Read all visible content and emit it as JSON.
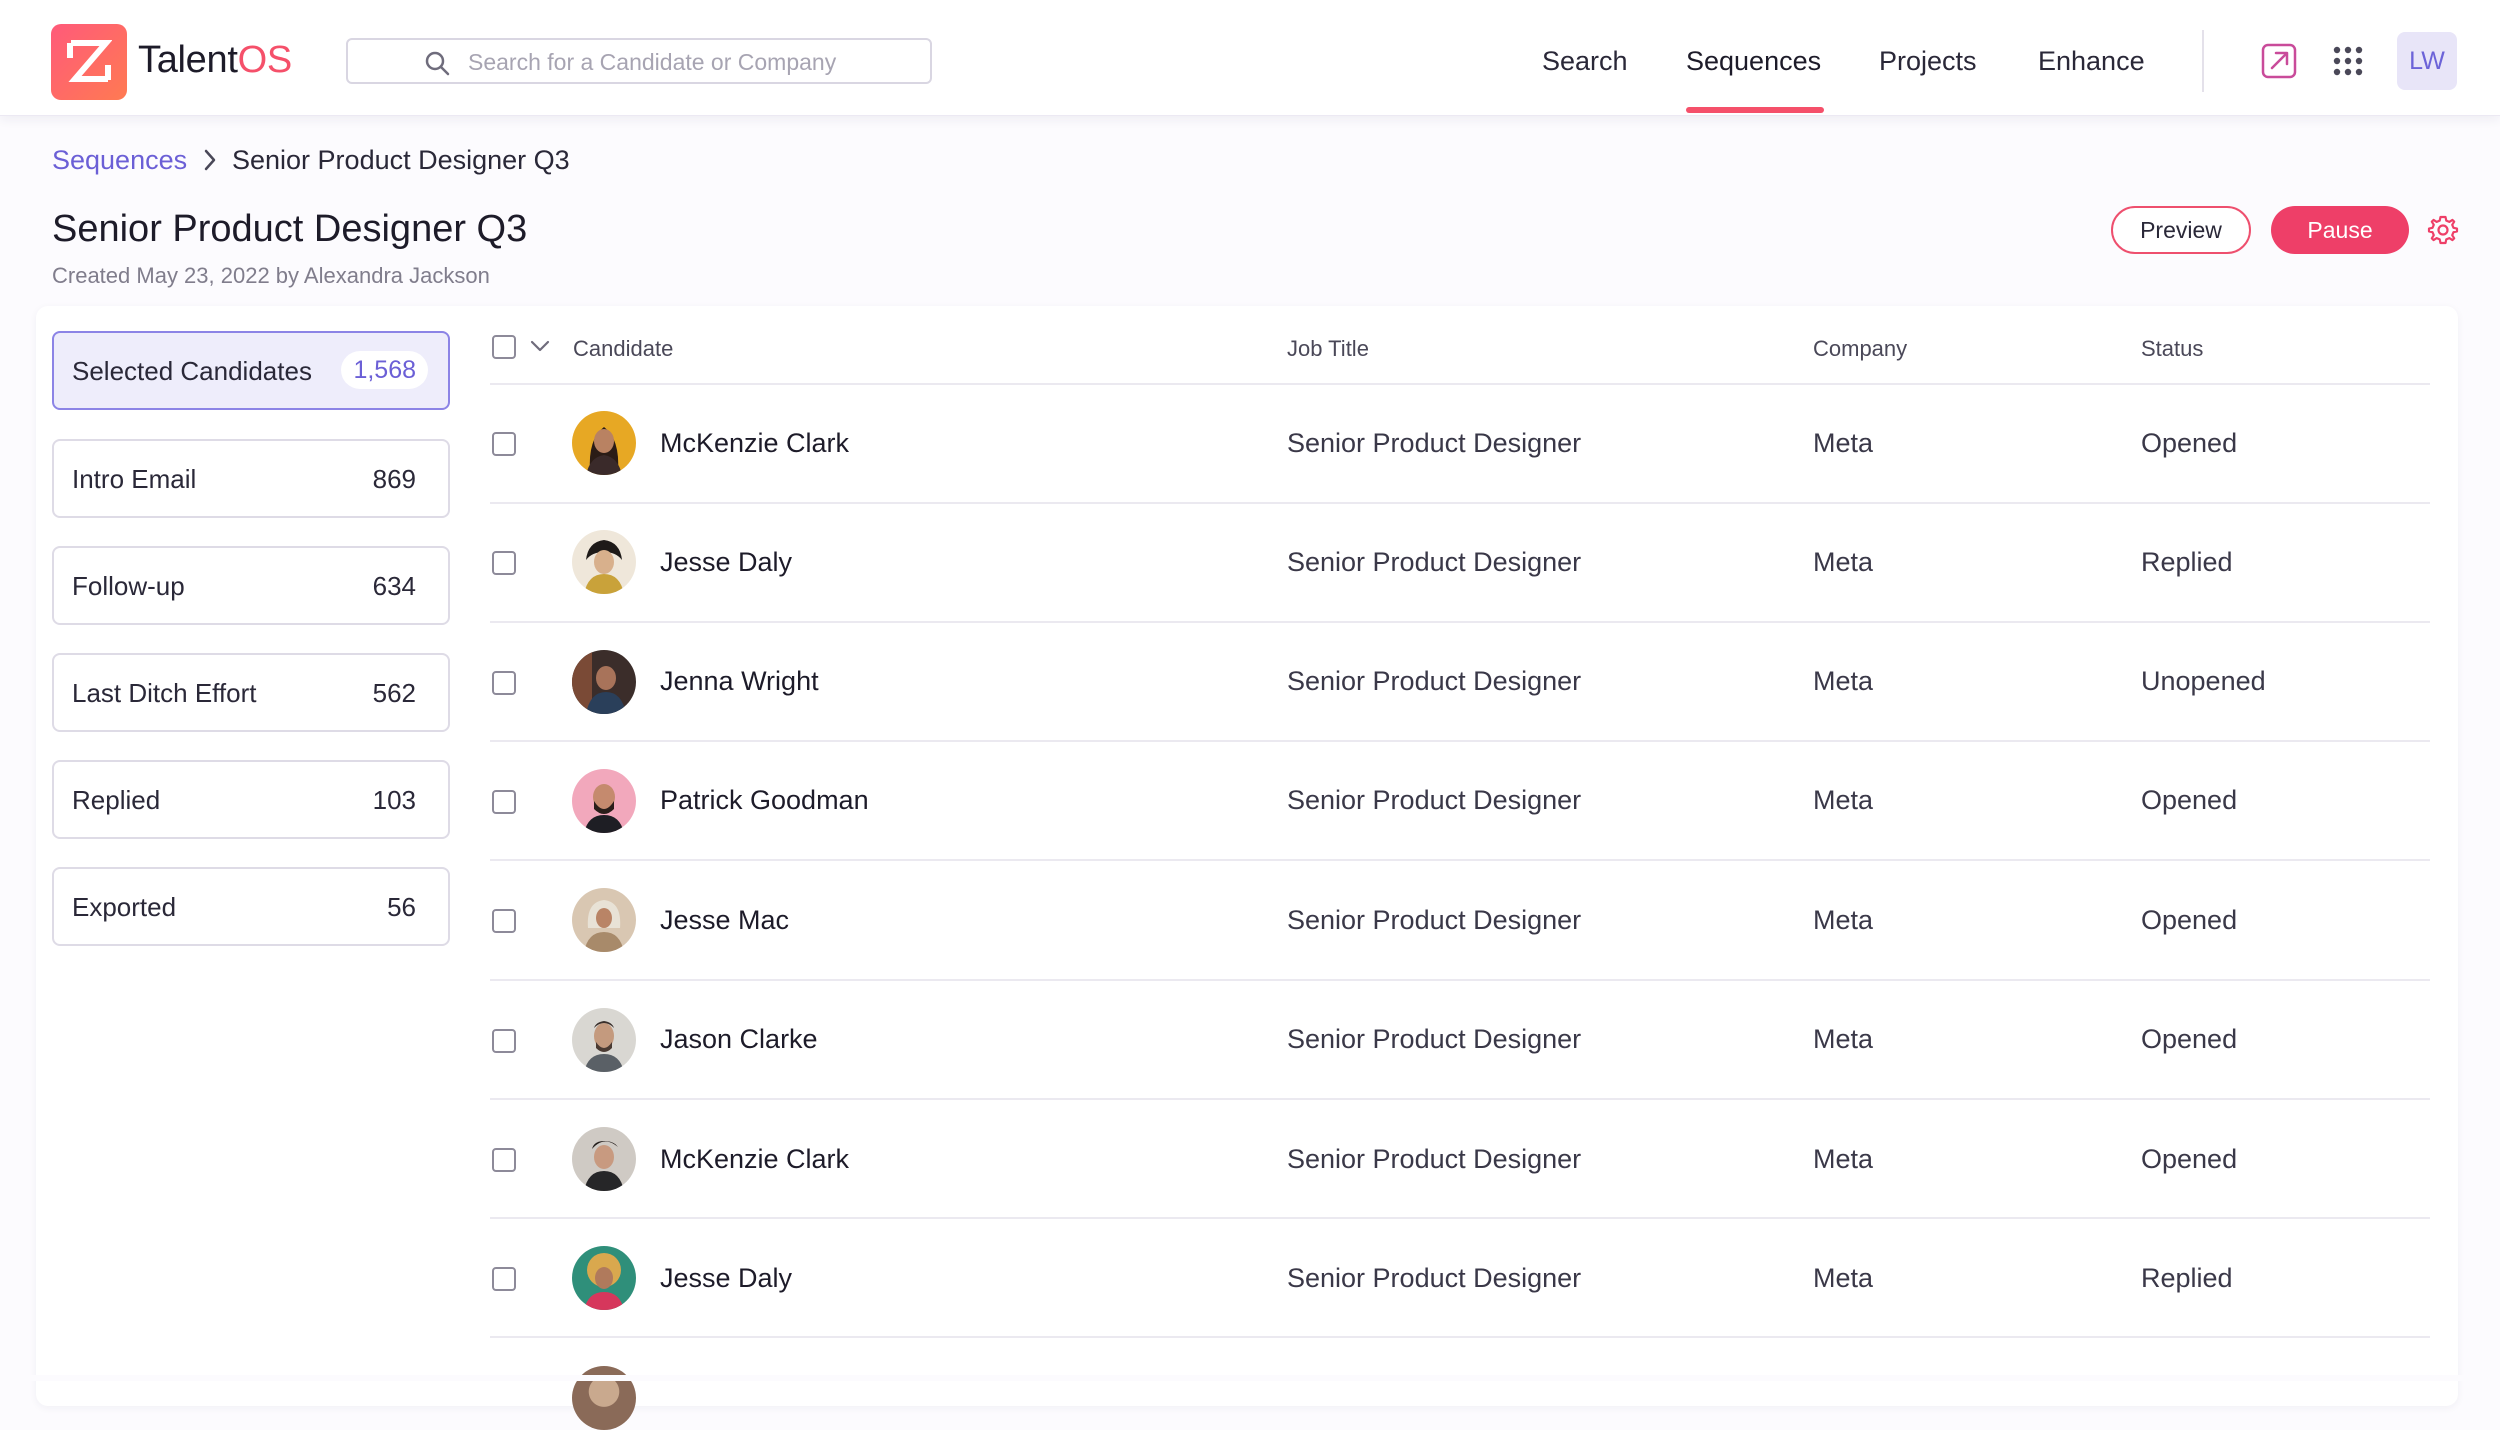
{
  "app": {
    "logo_part1": "Talent",
    "logo_part2": "OS",
    "brand_colors": {
      "accent": "#f5506a",
      "primary": "#6b5fd6",
      "pause": "#ee3f68"
    }
  },
  "search": {
    "placeholder": "Search for a Candidate or Company",
    "icon": "search-icon"
  },
  "nav": {
    "items": [
      "Search",
      "Sequences",
      "Projects",
      "Enhance"
    ],
    "active": "Sequences",
    "icons": [
      "external-link-icon",
      "apps-grid-icon"
    ],
    "user_initials": "LW"
  },
  "breadcrumb": {
    "parent": "Sequences",
    "current": "Senior Product Designer Q3"
  },
  "page": {
    "title": "Senior Product Designer Q3",
    "subtitle": "Created May 23, 2022 by Alexandra Jackson",
    "preview_label": "Preview",
    "pause_label": "Pause"
  },
  "filters": [
    {
      "label": "Selected Candidates",
      "count": "1,568",
      "active": true
    },
    {
      "label": "Intro Email",
      "count": "869"
    },
    {
      "label": "Follow-up",
      "count": "634"
    },
    {
      "label": "Last Ditch Effort",
      "count": "562"
    },
    {
      "label": "Replied",
      "count": "103"
    },
    {
      "label": "Exported",
      "count": "56"
    }
  ],
  "table": {
    "columns": [
      "Candidate",
      "Job Title",
      "Company",
      "Status"
    ],
    "rows": [
      {
        "name": "McKenzie Clark",
        "job": "Senior Product Designer",
        "company": "Meta",
        "status": "Opened"
      },
      {
        "name": "Jesse Daly",
        "job": "Senior Product Designer",
        "company": "Meta",
        "status": "Replied"
      },
      {
        "name": "Jenna Wright",
        "job": "Senior Product Designer",
        "company": "Meta",
        "status": "Unopened"
      },
      {
        "name": "Patrick Goodman",
        "job": "Senior Product Designer",
        "company": "Meta",
        "status": "Opened"
      },
      {
        "name": "Jesse Mac",
        "job": "Senior Product Designer",
        "company": "Meta",
        "status": "Opened"
      },
      {
        "name": "Jason Clarke",
        "job": "Senior Product Designer",
        "company": "Meta",
        "status": "Opened"
      },
      {
        "name": "McKenzie Clark",
        "job": "Senior Product Designer",
        "company": "Meta",
        "status": "Opened"
      },
      {
        "name": "Jesse Daly",
        "job": "Senior Product Designer",
        "company": "Meta",
        "status": "Replied"
      }
    ]
  }
}
